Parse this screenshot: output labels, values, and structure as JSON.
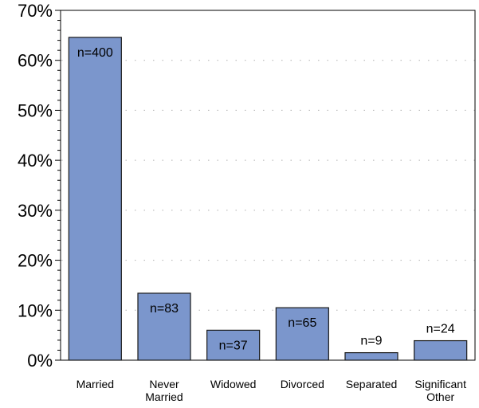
{
  "chart_data": {
    "type": "bar",
    "categories": [
      [
        "Married"
      ],
      [
        "Never",
        "Married"
      ],
      [
        "Widowed"
      ],
      [
        "Divorced"
      ],
      [
        "Separated"
      ],
      [
        "Significant",
        "Other"
      ]
    ],
    "values": [
      64.6,
      13.4,
      6.0,
      10.5,
      1.5,
      3.9
    ],
    "data_labels": [
      "n=400",
      "n=83",
      "n=37",
      "n=65",
      "n=9",
      "n=24"
    ],
    "ylim": [
      0,
      70
    ],
    "yticks": [
      0,
      10,
      20,
      30,
      40,
      50,
      60,
      70
    ],
    "ytick_labels": [
      "0%",
      "10%",
      "20%",
      "30%",
      "40%",
      "50%",
      "60%",
      "70%"
    ],
    "title": "",
    "xlabel": "",
    "ylabel": "",
    "grid": "horizontal dotted",
    "colors": {
      "bar_fill": "#7b96cc",
      "bar_stroke": "#1a1a1a",
      "grid": "#b0b0b0",
      "axis": "#000000"
    }
  }
}
